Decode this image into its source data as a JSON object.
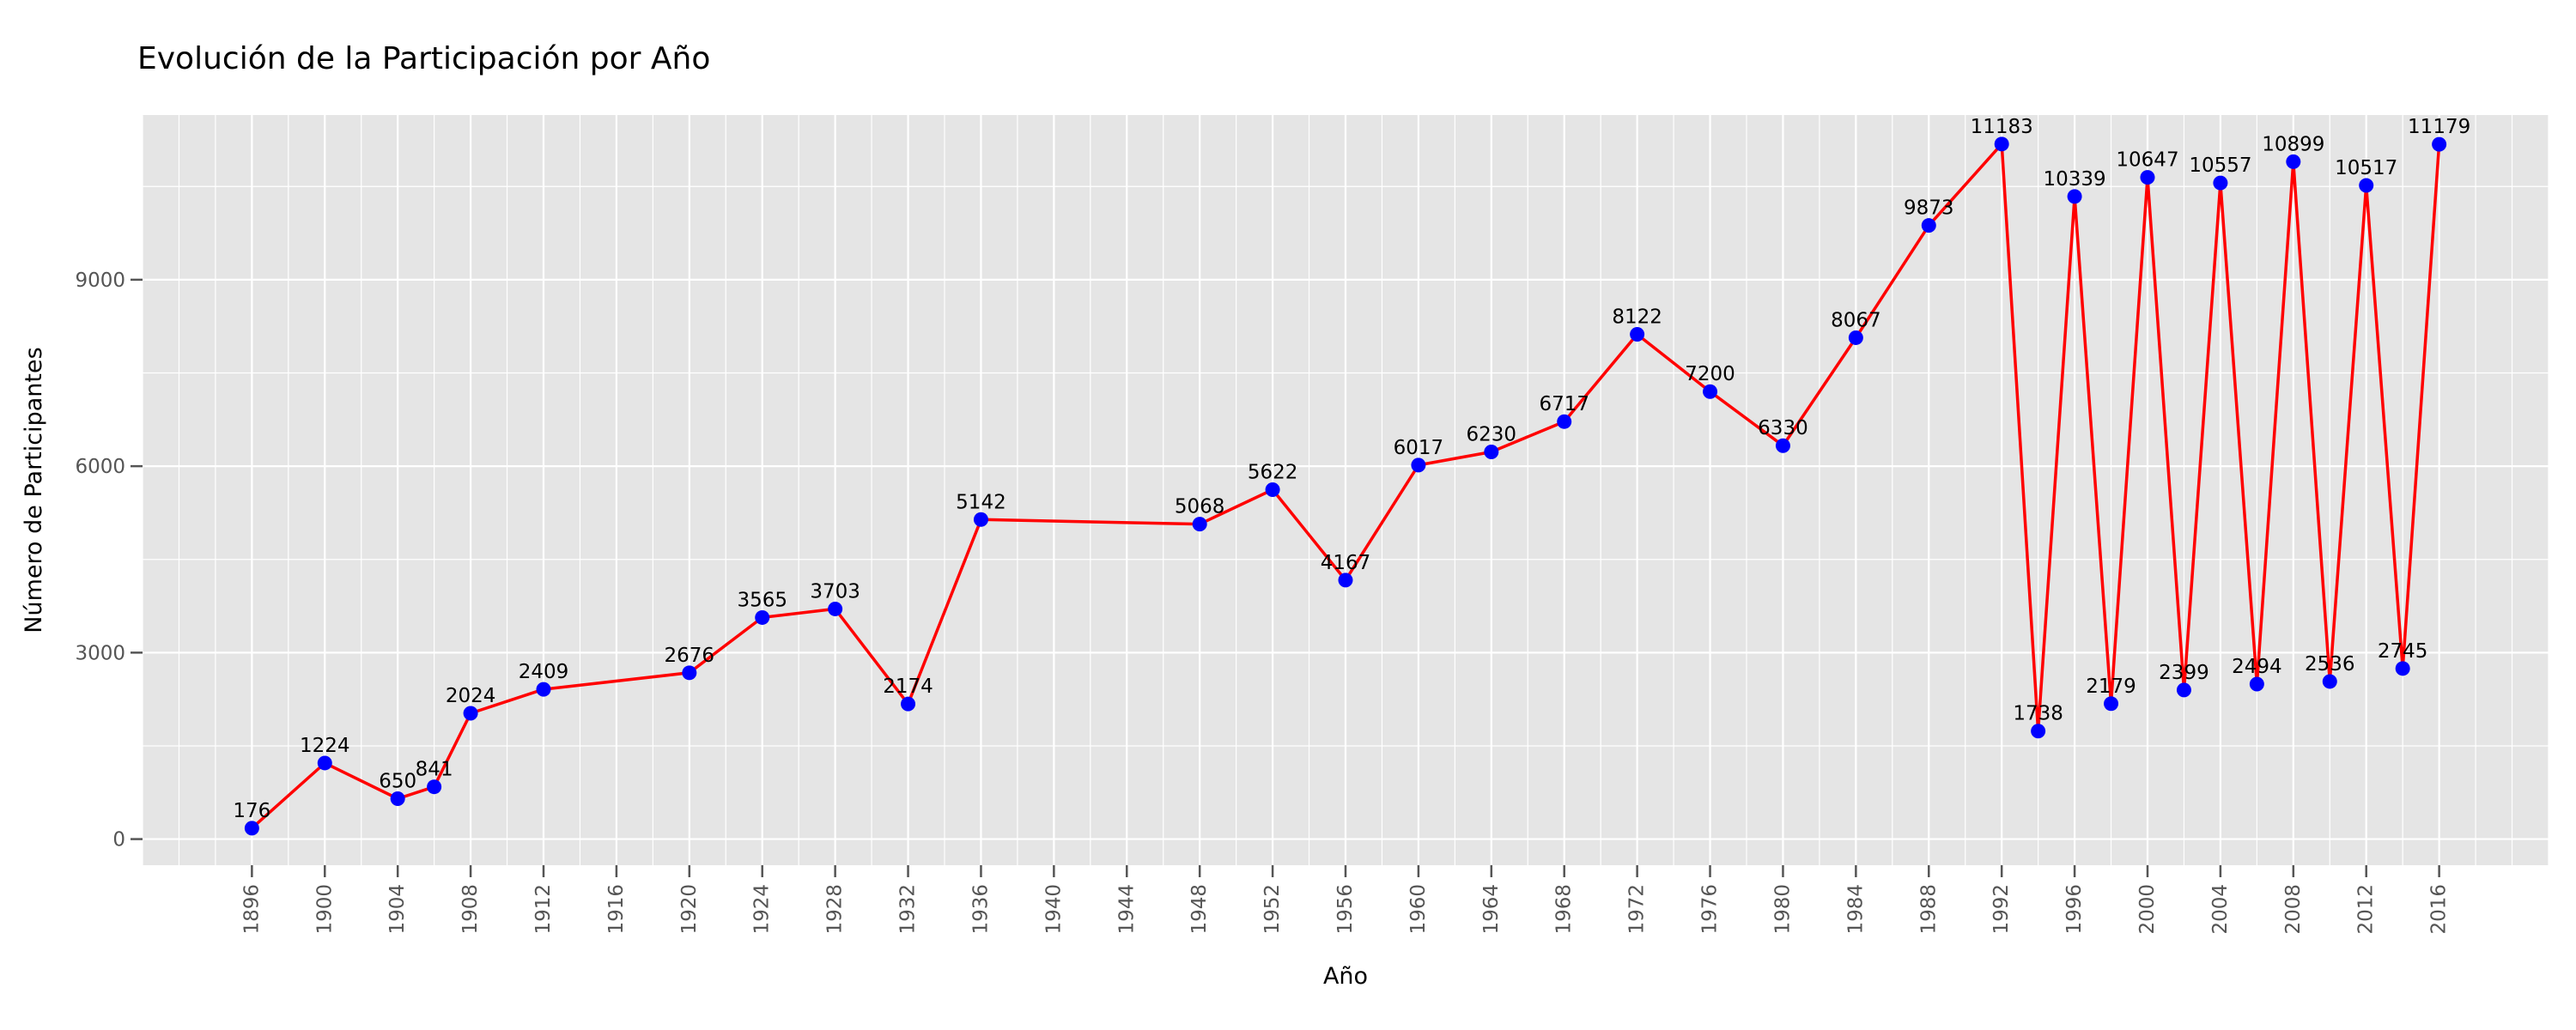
{
  "page": {
    "background": "#ffffff"
  },
  "chart_data": {
    "type": "line",
    "title": "Evolución de la Participación por Año",
    "xlabel": "Año",
    "ylabel": "Número de Participantes",
    "x": [
      1896,
      1900,
      1904,
      1906,
      1908,
      1912,
      1920,
      1924,
      1928,
      1932,
      1936,
      1948,
      1952,
      1956,
      1960,
      1964,
      1968,
      1972,
      1976,
      1980,
      1984,
      1988,
      1992,
      1994,
      1996,
      1998,
      2000,
      2002,
      2004,
      2006,
      2008,
      2010,
      2012,
      2014,
      2016
    ],
    "values": [
      176,
      1224,
      650,
      841,
      2024,
      2409,
      2676,
      3565,
      3703,
      2174,
      5142,
      5068,
      5622,
      4167,
      6017,
      6230,
      6717,
      8122,
      7200,
      6330,
      8067,
      9873,
      11183,
      1738,
      10339,
      2179,
      10647,
      2399,
      10557,
      2494,
      10899,
      2536,
      10517,
      2745,
      11179
    ],
    "point_labels_shown": true,
    "xlim": [
      1890,
      2022
    ],
    "ylim": [
      -420,
      11650
    ],
    "xticks": [
      1896,
      1900,
      1904,
      1908,
      1912,
      1916,
      1920,
      1924,
      1928,
      1932,
      1936,
      1940,
      1944,
      1948,
      1952,
      1956,
      1960,
      1964,
      1968,
      1972,
      1976,
      1980,
      1984,
      1988,
      1992,
      1996,
      2000,
      2004,
      2008,
      2012,
      2016
    ],
    "yticks": [
      0,
      3000,
      6000,
      9000
    ],
    "x_minor_step": 2,
    "y_minor_ticks": [
      1500,
      4500,
      7500,
      10500
    ],
    "grid": true,
    "legend_position": "none",
    "style": {
      "line_color": "#ff0000",
      "marker_color": "#0000ff",
      "plot_background": "#e5e5e5",
      "grid_color": "#ffffff",
      "tick_color": "#555555",
      "text_color": "#000000"
    }
  }
}
